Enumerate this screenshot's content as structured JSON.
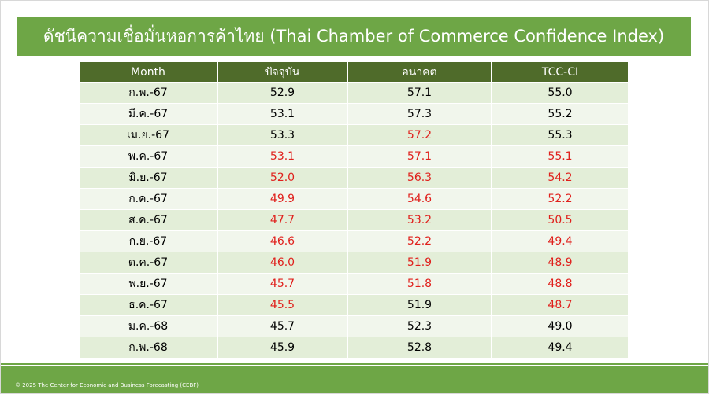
{
  "header": {
    "title": "ดัชนีความเชื่อมั่นหอการค้าไทย (Thai Chamber of Commerce Confidence Index)"
  },
  "table": {
    "columns": [
      "Month",
      "ปัจจุบัน",
      "อนาคต",
      "TCC-CI"
    ],
    "rows": [
      [
        "ก.พ.-67",
        "52.9",
        "57.1",
        "55.0"
      ],
      [
        "มี.ค.-67",
        "53.1",
        "57.3",
        "55.2"
      ],
      [
        "เม.ย.-67",
        "53.3",
        "57.2",
        "55.3"
      ],
      [
        "พ.ค.-67",
        "53.1",
        "57.1",
        "55.1"
      ],
      [
        "มิ.ย.-67",
        "52.0",
        "56.3",
        "54.2"
      ],
      [
        "ก.ค.-67",
        "49.9",
        "54.6",
        "52.2"
      ],
      [
        "ส.ค.-67",
        "47.7",
        "53.2",
        "50.5"
      ],
      [
        "ก.ย.-67",
        "46.6",
        "52.2",
        "49.4"
      ],
      [
        "ต.ค.-67",
        "46.0",
        "51.9",
        "48.9"
      ],
      [
        "พ.ย.-67",
        "45.7",
        "51.8",
        "48.8"
      ],
      [
        "ธ.ค.-67",
        "45.5",
        "51.9",
        "48.7"
      ],
      [
        "ม.ค.-68",
        "45.7",
        "52.3",
        "49.0"
      ],
      [
        "ก.พ.-68",
        "45.9",
        "52.8",
        "49.4"
      ]
    ],
    "text_colors": [
      [
        "#000000",
        "#000000",
        "#000000",
        "#000000"
      ],
      [
        "#000000",
        "#000000",
        "#000000",
        "#000000"
      ],
      [
        "#000000",
        "#000000",
        "#e0201c",
        "#000000"
      ],
      [
        "#000000",
        "#e0201c",
        "#e0201c",
        "#e0201c"
      ],
      [
        "#000000",
        "#e0201c",
        "#e0201c",
        "#e0201c"
      ],
      [
        "#000000",
        "#e0201c",
        "#e0201c",
        "#e0201c"
      ],
      [
        "#000000",
        "#e0201c",
        "#e0201c",
        "#e0201c"
      ],
      [
        "#000000",
        "#e0201c",
        "#e0201c",
        "#e0201c"
      ],
      [
        "#000000",
        "#e0201c",
        "#e0201c",
        "#e0201c"
      ],
      [
        "#000000",
        "#e0201c",
        "#e0201c",
        "#e0201c"
      ],
      [
        "#000000",
        "#e0201c",
        "#000000",
        "#e0201c"
      ],
      [
        "#000000",
        "#000000",
        "#000000",
        "#000000"
      ],
      [
        "#000000",
        "#000000",
        "#000000",
        "#000000"
      ]
    ]
  },
  "footer": {
    "text": "© 2025 The Center for Economic and Business Forecasting (CEBF)"
  }
}
